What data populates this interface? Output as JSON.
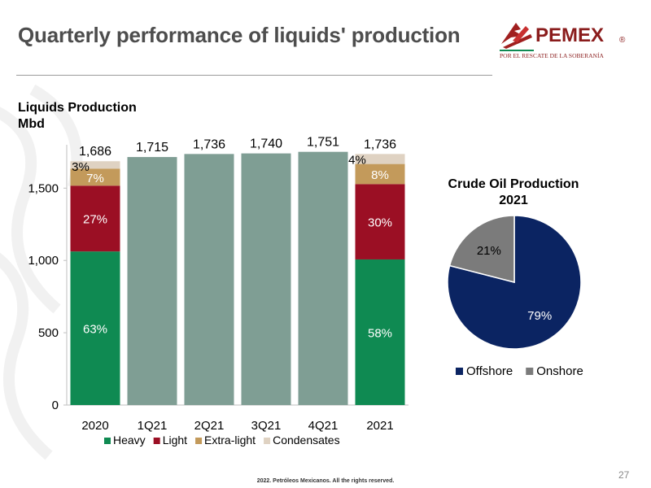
{
  "slide": {
    "title": "Quarterly performance of liquids' production",
    "footer": "2022. Petróleos Mexicanos. All the rights reserved.",
    "page_number": "27",
    "logo": {
      "brand": "PEMEX",
      "registered": "®",
      "tagline": "POR EL RESCATE DE LA SOBERANÍA"
    }
  },
  "bar_title": {
    "line1": "Liquids Production",
    "line2": "Mbd"
  },
  "pie_title": {
    "line1": "Crude Oil Production",
    "line2": "2021"
  },
  "chart_data": [
    {
      "type": "bar",
      "title": "Liquids Production",
      "ylabel": "Mbd",
      "categories": [
        "2020",
        "1Q21",
        "2Q21",
        "3Q21",
        "4Q21",
        "2021"
      ],
      "totals": [
        1686,
        1715,
        1736,
        1740,
        1751,
        1736
      ],
      "total_labels": [
        "1,686",
        "1,715",
        "1,736",
        "1,740",
        "1,751",
        "1,736"
      ],
      "ylim": [
        0,
        1800
      ],
      "yticks": [
        0,
        500,
        1000,
        1500
      ],
      "ytick_labels": [
        "0",
        "500",
        "1,000",
        "1,500"
      ],
      "series": [
        {
          "name": "Heavy",
          "color": "#0f8a52",
          "values": [
            1062,
            null,
            null,
            null,
            null,
            1007
          ],
          "labels": [
            "63%",
            "",
            "",
            "",
            "",
            "58%"
          ]
        },
        {
          "name": "Light",
          "color": "#9b0f24",
          "values": [
            455,
            null,
            null,
            null,
            null,
            521
          ],
          "labels": [
            "27%",
            "",
            "",
            "",
            "",
            "30%"
          ]
        },
        {
          "name": "Extra-light",
          "color": "#c39a5b",
          "values": [
            118,
            null,
            null,
            null,
            null,
            139
          ],
          "labels": [
            "7%",
            "",
            "",
            "",
            "",
            "8%"
          ]
        },
        {
          "name": "Condensates",
          "color": "#dfd2c2",
          "values": [
            51,
            null,
            null,
            null,
            null,
            69
          ],
          "labels": [
            "3%",
            "",
            "",
            "",
            "",
            "4%"
          ]
        }
      ],
      "total_only_color": "#7f9e94",
      "legend_position": "bottom",
      "grid": false
    },
    {
      "type": "pie",
      "title": "Crude Oil Production 2021",
      "slices": [
        {
          "name": "Offshore",
          "value": 79,
          "label": "79%",
          "color": "#0b2462"
        },
        {
          "name": "Onshore",
          "value": 21,
          "label": "21%",
          "color": "#7b7b7b"
        }
      ],
      "legend_position": "bottom"
    }
  ]
}
